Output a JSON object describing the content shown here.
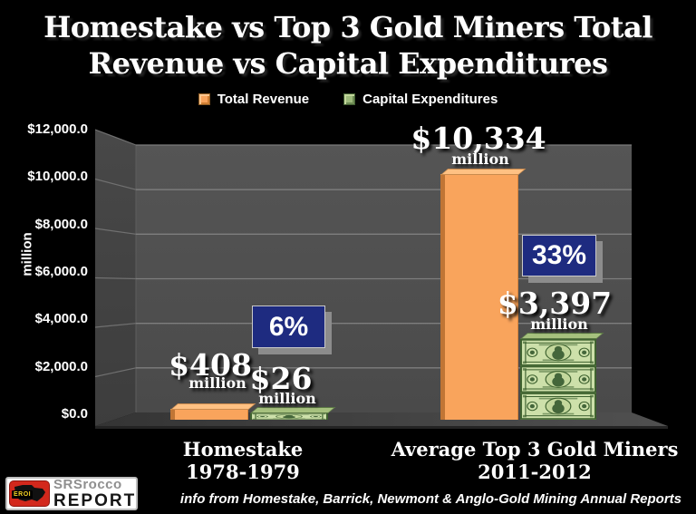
{
  "title": {
    "line1": "Homestake vs Top 3 Gold Miners Total",
    "line2": "Revenue vs Capital Expenditures"
  },
  "legend": {
    "items": [
      {
        "label": "Total Revenue",
        "color": "#F9A45C",
        "swatch_icon": "orange-square-icon"
      },
      {
        "label": "Capital Expenditures",
        "color": "#9EBB7C",
        "swatch_icon": "dollar-bill-square-icon"
      }
    ]
  },
  "y_axis": {
    "title": "million",
    "tick_labels": [
      "$12,000.0",
      "$10,000.0",
      "$8,000.0",
      "$6,000.0",
      "$4,000.0",
      "$2,000.0",
      "$0.0"
    ],
    "tick_values": [
      12000,
      10000,
      8000,
      6000,
      4000,
      2000,
      0
    ]
  },
  "chart_data": {
    "type": "bar",
    "title": "Homestake vs Top 3 Gold Miners Total Revenue vs Capital Expenditures",
    "xlabel": "",
    "ylabel": "million",
    "ylim": [
      0,
      12000
    ],
    "grid": true,
    "legend_position": "top",
    "style": "3d-black-background",
    "categories": [
      "Homestake 1978-1979",
      "Average Top 3 Gold Miners 2011-2012"
    ],
    "series": [
      {
        "name": "Total Revenue",
        "values": [
          408,
          10334
        ],
        "color": "#F9A45C"
      },
      {
        "name": "Capital Expenditures",
        "values": [
          26,
          3397
        ],
        "color": "#CDE0AA",
        "texture": "stacked-dollar-bills"
      }
    ],
    "groups": [
      {
        "category_line1": "Homestake",
        "category_line2": "1978-1979",
        "revenue_value": 408,
        "revenue_label": "$408",
        "revenue_unit": "million",
        "capex_value": 26,
        "capex_label": "$26",
        "capex_unit": "million",
        "capex_pct": "6%"
      },
      {
        "category_line1": "Average Top 3 Gold Miners",
        "category_line2": "2011-2012",
        "revenue_value": 10334,
        "revenue_label": "$10,334",
        "revenue_unit": "million",
        "capex_value": 3397,
        "capex_label": "$3,397",
        "capex_unit": "million",
        "capex_pct": "33%"
      }
    ]
  },
  "colors": {
    "background": "#000000",
    "revenue_orange": "#F9A45C",
    "badge_navy": "#1E2B80",
    "badge_shadow": "#8C8C8C",
    "wall_gray": "#4E4E4E",
    "grid_line": "#7E7E7E",
    "bill_paper": "#CDE0AA",
    "bill_ink": "#3E622F"
  },
  "footer": {
    "credit": "info from Homestake, Barrick, Newmont & Anglo-Gold Mining Annual Reports",
    "logo": {
      "badge_text": "EROI",
      "name": "SRSrocco",
      "word": "REPORT"
    }
  }
}
